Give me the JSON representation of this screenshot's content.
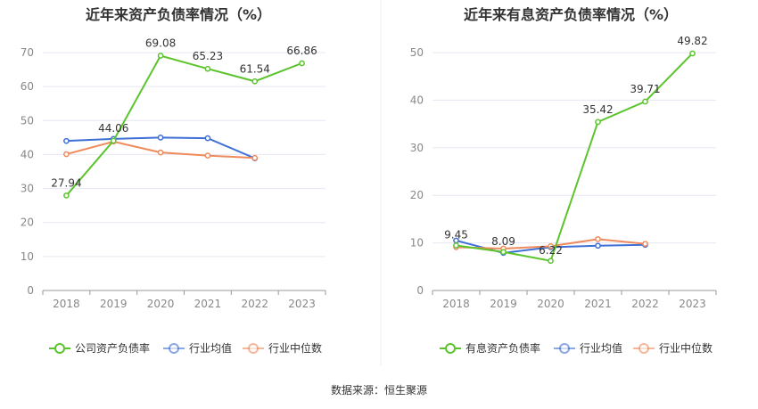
{
  "footer": {
    "source": "数据来源：恒生聚源"
  },
  "chart_data": [
    {
      "type": "line",
      "title": "近年来资产负债率情况（%）",
      "categories": [
        "2018",
        "2019",
        "2020",
        "2021",
        "2022",
        "2023"
      ],
      "ylim": [
        0,
        70
      ],
      "yticks": [
        0,
        10,
        20,
        30,
        40,
        50,
        60,
        70
      ],
      "grid": true,
      "legend_position": "bottom",
      "series": [
        {
          "name": "公司资产负债率",
          "color": "#5bc42c",
          "values": [
            27.94,
            44.06,
            69.08,
            65.23,
            61.54,
            66.86
          ],
          "labels": [
            "27.94",
            "44.06",
            "69.08",
            "65.23",
            "61.54",
            "66.86"
          ]
        },
        {
          "name": "行业均值",
          "color": "#3d6fd6",
          "values": [
            44.0,
            44.6,
            45.0,
            44.8,
            38.9,
            null
          ]
        },
        {
          "name": "行业中位数",
          "color": "#ef8a5c",
          "values": [
            40.1,
            43.8,
            40.6,
            39.7,
            39.0,
            null
          ]
        }
      ]
    },
    {
      "type": "line",
      "title": "近年来有息资产负债率情况（%）",
      "categories": [
        "2018",
        "2019",
        "2020",
        "2021",
        "2022",
        "2023"
      ],
      "ylim": [
        0,
        50
      ],
      "yticks": [
        0,
        10,
        20,
        30,
        40,
        50
      ],
      "grid": true,
      "legend_position": "bottom",
      "series": [
        {
          "name": "有息资产负债率",
          "color": "#5bc42c",
          "values": [
            9.45,
            8.09,
            6.22,
            35.42,
            39.71,
            49.82
          ],
          "labels": [
            "9.45",
            "8.09",
            "6.22",
            "35.42",
            "39.71",
            "49.82"
          ]
        },
        {
          "name": "行业均值",
          "color": "#3d6fd6",
          "values": [
            10.5,
            7.9,
            9.1,
            9.4,
            9.6,
            null
          ]
        },
        {
          "name": "行业中位数",
          "color": "#ef8a5c",
          "values": [
            9.1,
            8.8,
            9.3,
            10.8,
            9.8,
            null
          ]
        }
      ]
    }
  ]
}
